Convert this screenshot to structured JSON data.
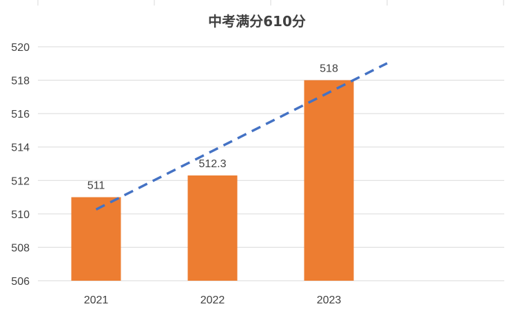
{
  "chart_data": {
    "type": "bar",
    "title": "中考满分610分",
    "categories": [
      "2021",
      "2022",
      "2023"
    ],
    "values": [
      511,
      512.3,
      518
    ],
    "data_labels": [
      "511",
      "512.3",
      "518"
    ],
    "ylim": [
      506,
      520
    ],
    "yticks": [
      506,
      508,
      510,
      512,
      514,
      516,
      518,
      520
    ],
    "ytick_labels": [
      "506",
      "508",
      "510",
      "512",
      "514",
      "516",
      "518",
      "520"
    ],
    "grid": true,
    "legend": "none",
    "trendline": {
      "type": "linear",
      "style": "dashed",
      "extends_forward_periods": 0.5
    },
    "colors": {
      "bar": "#ED7D31",
      "trendline": "#4472C4",
      "grid": "#D9D9D9",
      "text": "#404040"
    }
  }
}
